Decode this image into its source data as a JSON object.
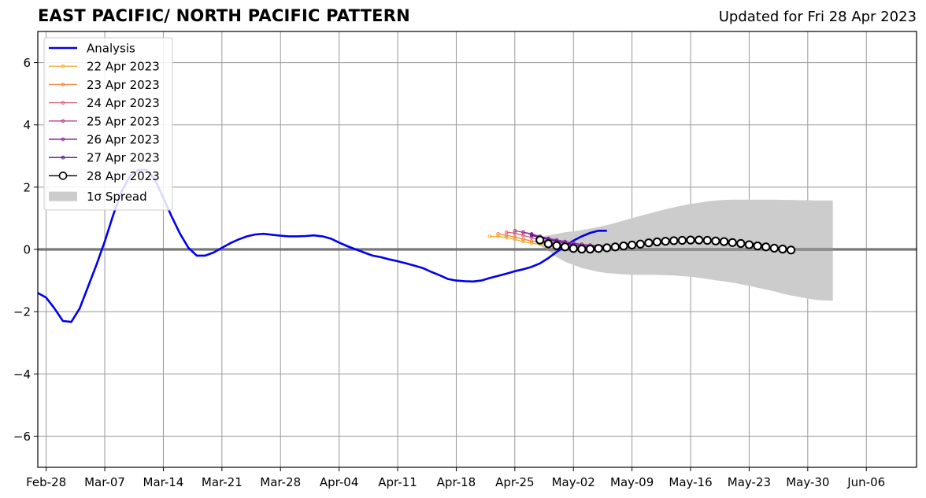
{
  "title": "EAST PACIFIC/ NORTH PACIFIC PATTERN",
  "updated": "Updated for Fri 28 Apr 2023",
  "chart_data": {
    "type": "line",
    "title": "EAST PACIFIC/ NORTH PACIFIC PATTERN",
    "xlabel": "",
    "ylabel": "",
    "x_axis": {
      "type": "date",
      "range": [
        "2023-02-27",
        "2023-06-12"
      ],
      "tick_dates": [
        "2023-02-28",
        "2023-03-07",
        "2023-03-14",
        "2023-03-21",
        "2023-03-28",
        "2023-04-04",
        "2023-04-11",
        "2023-04-18",
        "2023-04-25",
        "2023-05-02",
        "2023-05-09",
        "2023-05-16",
        "2023-05-23",
        "2023-05-30",
        "2023-06-06"
      ],
      "tick_labels": [
        "Feb-28",
        "Mar-07",
        "Mar-14",
        "Mar-21",
        "Mar-28",
        "Apr-04",
        "Apr-11",
        "Apr-18",
        "Apr-25",
        "May-02",
        "May-09",
        "May-16",
        "May-23",
        "May-30",
        "Jun-06"
      ]
    },
    "y_axis": {
      "range": [
        -7,
        7
      ],
      "ticks": [
        -6,
        -4,
        -2,
        0,
        2,
        4,
        6
      ],
      "tick_labels": [
        "−6",
        "−4",
        "−2",
        "0",
        "2",
        "4",
        "6"
      ]
    },
    "grid": true,
    "zero_line": true,
    "legend": {
      "position": "top-left",
      "entries": [
        "Analysis",
        "22 Apr 2023",
        "23 Apr 2023",
        "24 Apr 2023",
        "25 Apr 2023",
        "26 Apr 2023",
        "27 Apr 2023",
        "28 Apr 2023",
        "1σ Spread"
      ]
    },
    "analysis": {
      "name": "Analysis",
      "color": "#0000ee",
      "start_date": "2023-02-27",
      "values": [
        -1.4,
        -1.55,
        -1.9,
        -2.3,
        -2.33,
        -1.9,
        -1.2,
        -0.5,
        0.25,
        1.1,
        1.85,
        2.35,
        2.55,
        2.55,
        2.25,
        1.65,
        1.05,
        0.5,
        0.05,
        -0.2,
        -0.2,
        -0.1,
        0.05,
        0.2,
        0.32,
        0.42,
        0.48,
        0.5,
        0.47,
        0.44,
        0.42,
        0.42,
        0.43,
        0.45,
        0.42,
        0.35,
        0.22,
        0.1,
        0.0,
        -0.1,
        -0.2,
        -0.25,
        -0.32,
        -0.38,
        -0.45,
        -0.52,
        -0.6,
        -0.72,
        -0.83,
        -0.95,
        -1.0,
        -1.02,
        -1.03,
        -1.0,
        -0.92,
        -0.85,
        -0.78,
        -0.7,
        -0.64,
        -0.56,
        -0.45,
        -0.28,
        -0.08,
        0.1,
        0.28,
        0.42,
        0.53,
        0.6,
        0.6
      ]
    },
    "forecasts": [
      {
        "name": "22 Apr 2023",
        "color": "#f2b13c",
        "start_date": "2023-04-22",
        "values": [
          0.42,
          0.42,
          0.38,
          0.32,
          0.25,
          0.2,
          0.16,
          0.12,
          0.1,
          0.08,
          0.07
        ]
      },
      {
        "name": "23 Apr 2023",
        "color": "#ee8a44",
        "start_date": "2023-04-23",
        "values": [
          0.5,
          0.45,
          0.4,
          0.33,
          0.27,
          0.22,
          0.18,
          0.15,
          0.12,
          0.1
        ]
      },
      {
        "name": "24 Apr 2023",
        "color": "#dd6075",
        "start_date": "2023-04-24",
        "values": [
          0.55,
          0.52,
          0.45,
          0.38,
          0.3,
          0.25,
          0.2,
          0.16,
          0.14,
          0.12
        ]
      },
      {
        "name": "25 Apr 2023",
        "color": "#b83b8c",
        "start_date": "2023-04-25",
        "values": [
          0.6,
          0.55,
          0.5,
          0.42,
          0.35,
          0.3,
          0.25,
          0.2,
          0.16,
          0.14,
          0.12,
          0.1,
          0.1,
          0.11,
          0.13,
          0.15,
          0.17,
          0.2,
          0.22,
          0.24,
          0.26,
          0.27,
          0.28,
          0.28,
          0.27,
          0.26,
          0.24,
          0.22,
          0.2,
          0.18,
          0.16
        ]
      },
      {
        "name": "26 Apr 2023",
        "color": "#8e2aa0",
        "start_date": "2023-04-26",
        "values": [
          0.55,
          0.48,
          0.42,
          0.35,
          0.3,
          0.25,
          0.2,
          0.16,
          0.13,
          0.11,
          0.1,
          0.1,
          0.11,
          0.13,
          0.15,
          0.18,
          0.2,
          0.22,
          0.24,
          0.26,
          0.27,
          0.28,
          0.28,
          0.27,
          0.26,
          0.24,
          0.22,
          0.2,
          0.18
        ]
      },
      {
        "name": "27 Apr 2023",
        "color": "#4b1a8c",
        "start_date": "2023-04-27",
        "values": [
          0.45,
          0.38,
          0.32,
          0.26,
          0.2,
          0.15,
          0.11,
          0.08,
          0.07,
          0.07,
          0.08,
          0.1,
          0.13,
          0.16,
          0.19,
          0.22,
          0.24,
          0.26,
          0.27,
          0.28,
          0.28,
          0.27,
          0.26,
          0.24,
          0.22,
          0.2,
          0.17,
          0.14
        ]
      },
      {
        "name": "28 Apr 2023",
        "color": "#000000",
        "start_date": "2023-04-28",
        "values": [
          0.3,
          0.18,
          0.12,
          0.08,
          0.03,
          0.01,
          0.01,
          0.03,
          0.05,
          0.08,
          0.11,
          0.14,
          0.17,
          0.21,
          0.24,
          0.26,
          0.28,
          0.29,
          0.3,
          0.3,
          0.29,
          0.27,
          0.25,
          0.22,
          0.19,
          0.15,
          0.11,
          0.08,
          0.04,
          0.01,
          -0.02
        ]
      }
    ],
    "spread": {
      "name": "1σ Spread",
      "color": "#cccccc",
      "start_date": "2023-04-28",
      "upper": [
        0.4,
        0.45,
        0.5,
        0.55,
        0.58,
        0.62,
        0.67,
        0.72,
        0.78,
        0.85,
        0.93,
        1.0,
        1.08,
        1.15,
        1.22,
        1.29,
        1.35,
        1.41,
        1.46,
        1.5,
        1.54,
        1.57,
        1.59,
        1.6,
        1.6,
        1.6,
        1.6,
        1.6,
        1.6,
        1.59,
        1.59,
        1.58,
        1.58,
        1.57,
        1.57,
        1.57
      ],
      "lower": [
        0.12,
        -0.05,
        -0.25,
        -0.4,
        -0.5,
        -0.6,
        -0.66,
        -0.72,
        -0.76,
        -0.78,
        -0.8,
        -0.81,
        -0.82,
        -0.82,
        -0.82,
        -0.83,
        -0.84,
        -0.86,
        -0.88,
        -0.91,
        -0.95,
        -0.99,
        -1.03,
        -1.07,
        -1.12,
        -1.17,
        -1.23,
        -1.29,
        -1.35,
        -1.42,
        -1.48,
        -1.53,
        -1.58,
        -1.62,
        -1.64,
        -1.65
      ]
    }
  }
}
